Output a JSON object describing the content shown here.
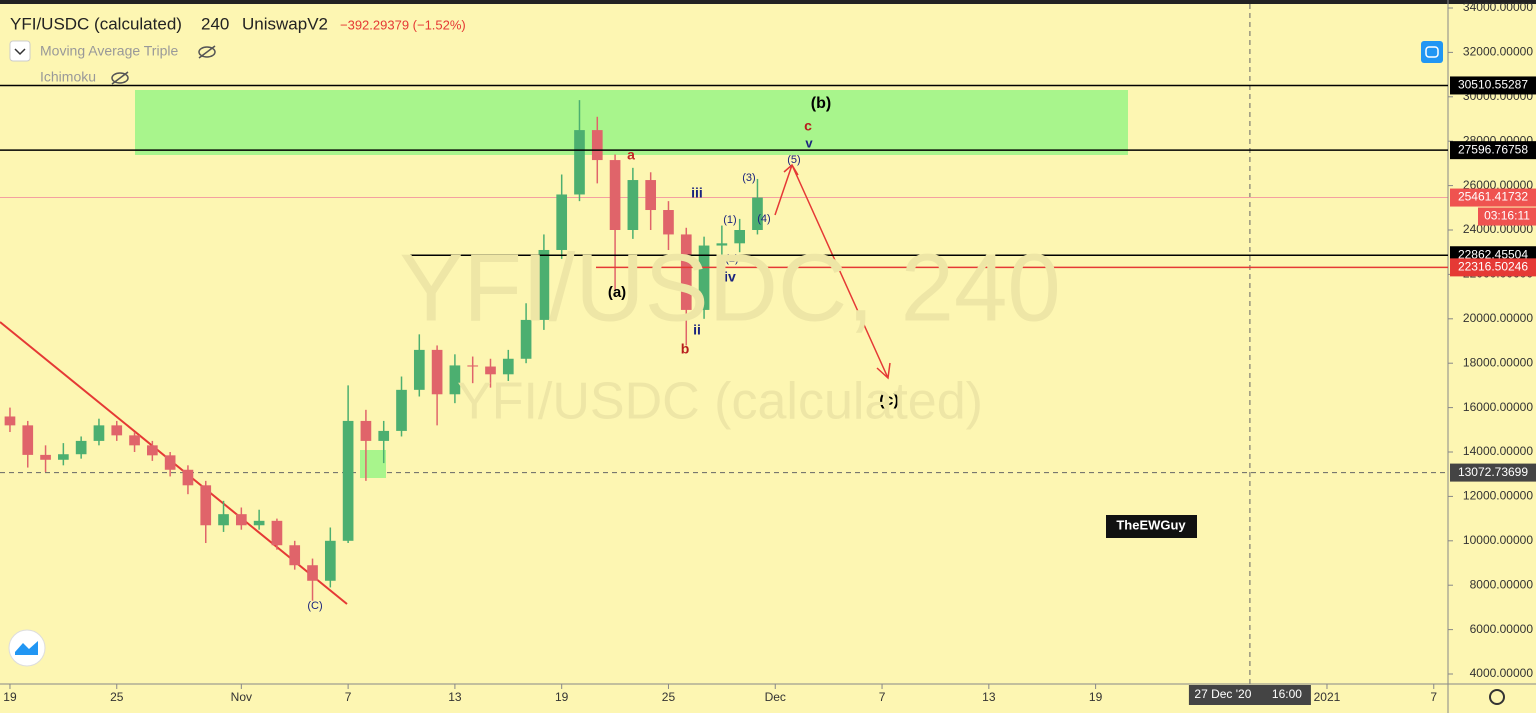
{
  "header": {
    "symbol": "YFI/USDC (calculated)",
    "interval": "240",
    "exchange": "UniswapV2",
    "change": "−392.29379 (−1.52%)"
  },
  "indicators": [
    "Moving Average Triple",
    "Ichimoku"
  ],
  "watermark": {
    "line1": "YFI/USDC, 240",
    "line2": "YFI/USDC (calculated)"
  },
  "signature": "TheEWGuy",
  "annotations": [
    "(b)",
    "c",
    "v",
    "(5)",
    "a",
    "(3)",
    "iii",
    "(1)",
    "(4)",
    "(2)",
    "(a)",
    "iv",
    "ii",
    "b",
    "(c)",
    "(C)"
  ],
  "chart_data": {
    "type": "candlestick",
    "up_color": "#4caf70",
    "down_color": "#e0646a",
    "x": [
      0,
      1,
      2,
      3,
      4,
      5,
      6,
      7,
      8,
      9,
      10,
      11,
      12,
      13,
      14,
      15,
      16,
      17,
      18,
      19,
      20,
      21,
      22,
      23,
      24,
      25,
      26,
      27,
      28,
      29,
      30,
      31,
      32,
      33,
      34,
      35,
      36,
      37,
      38,
      39,
      40,
      41,
      42
    ],
    "open": [
      15600,
      15200,
      13870,
      13650,
      13900,
      14500,
      15200,
      14750,
      14300,
      13850,
      13200,
      12500,
      10700,
      11200,
      10700,
      10900,
      9800,
      8900,
      8200,
      10000,
      15400,
      14500,
      14950,
      16800,
      18600,
      16600,
      17900,
      17850,
      17500,
      18200,
      19950,
      23100,
      25600,
      28500,
      27150,
      24000,
      26250,
      24900,
      23800,
      20400,
      23300,
      23400,
      24000
    ],
    "high": [
      16000,
      15400,
      14300,
      14400,
      14700,
      15500,
      15400,
      14900,
      14500,
      14000,
      13400,
      12700,
      11800,
      11500,
      11400,
      11000,
      10000,
      9200,
      10600,
      17000,
      15900,
      15400,
      17400,
      19300,
      18800,
      18400,
      18300,
      18200,
      18600,
      20700,
      23800,
      26500,
      29850,
      29100,
      27400,
      26800,
      26600,
      25300,
      24100,
      23700,
      24200,
      24500,
      26300
    ],
    "low": [
      14900,
      13300,
      13100,
      13400,
      13700,
      14300,
      14500,
      14000,
      13600,
      12900,
      12100,
      9900,
      10400,
      10500,
      10500,
      9600,
      8700,
      7300,
      7900,
      9900,
      12700,
      13500,
      14700,
      16500,
      15200,
      16200,
      17100,
      16900,
      17200,
      18000,
      19500,
      22700,
      25300,
      26100,
      21300,
      23600,
      24000,
      23100,
      18800,
      20000,
      22600,
      23000,
      23800
    ],
    "close": [
      15200,
      13870,
      13650,
      13900,
      14500,
      15200,
      14750,
      14300,
      13850,
      13200,
      12500,
      10700,
      11200,
      10700,
      10900,
      9800,
      8900,
      8200,
      10000,
      15400,
      14500,
      14950,
      16800,
      18600,
      16600,
      17900,
      17850,
      17500,
      18200,
      19950,
      23100,
      25600,
      28500,
      27150,
      24000,
      26250,
      24900,
      23800,
      20400,
      23300,
      23400,
      24000,
      25461.41732
    ],
    "xlim": [
      -0.56,
      80.8
    ],
    "ylim": [
      3550,
      34360
    ],
    "xticks": [
      {
        "value": 0,
        "label": "19"
      },
      {
        "value": 6,
        "label": "25"
      },
      {
        "value": 13,
        "label": "Nov"
      },
      {
        "value": 19,
        "label": "7"
      },
      {
        "value": 25,
        "label": "13"
      },
      {
        "value": 31,
        "label": "19"
      },
      {
        "value": 37,
        "label": "25"
      },
      {
        "value": 43,
        "label": "Dec"
      },
      {
        "value": 49,
        "label": "7"
      },
      {
        "value": 55,
        "label": "13"
      },
      {
        "value": 61,
        "label": "19"
      },
      {
        "value": 74,
        "label": "2021"
      },
      {
        "value": 80,
        "label": "7"
      }
    ],
    "yticks": [
      {
        "value": 4000,
        "label": "4000.00000"
      },
      {
        "value": 6000,
        "label": "6000.00000"
      },
      {
        "value": 8000,
        "label": "8000.00000"
      },
      {
        "value": 10000,
        "label": "10000.00000"
      },
      {
        "value": 12000,
        "label": "12000.00000"
      },
      {
        "value": 14000,
        "label": "14000.00000"
      },
      {
        "value": 16000,
        "label": "16000.00000"
      },
      {
        "value": 18000,
        "label": "18000.00000"
      },
      {
        "value": 20000,
        "label": "20000.00000"
      },
      {
        "value": 22000,
        "label": "22000.00000"
      },
      {
        "value": 24000,
        "label": "24000.00000"
      },
      {
        "value": 26000,
        "label": "26000.00000"
      },
      {
        "value": 28000,
        "label": "28000.00000"
      },
      {
        "value": 30000,
        "label": "30000.00000"
      },
      {
        "value": 32000,
        "label": "32000.00000"
      },
      {
        "value": 34000,
        "label": "34000.00000"
      }
    ],
    "price_lines": [
      {
        "value": 30510.55287,
        "color": "#000000"
      },
      {
        "value": 27596.76758,
        "color": "#000000"
      },
      {
        "value": 22862.45504,
        "color": "#000000"
      },
      {
        "value": 22316.50246,
        "color": "#e53935"
      }
    ],
    "last_price": {
      "value": 25461.41732,
      "countdown": "03:16:11",
      "color": "#ef5350"
    },
    "crosshair": {
      "x": 69.67,
      "price": 13072.73699,
      "date_label": "27 Dec '20",
      "time_label": "16:00"
    }
  }
}
